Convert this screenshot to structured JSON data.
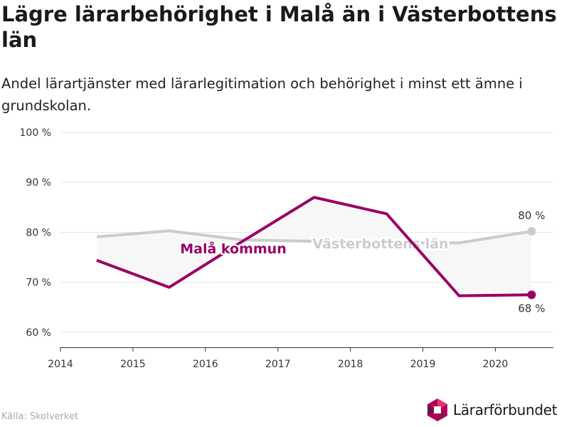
{
  "header": {
    "title": "Lägre lärarbehörighet i Malå än i Västerbottens län",
    "subtitle": "Andel lärartjänster med lärarlegitimation och behörighet i minst ett ämne i grundskolan."
  },
  "footer": {
    "source": "Källa: Skolverket",
    "brand_name": "Lärarförbundet",
    "brand_icon": "lararforbundet-logo-icon"
  },
  "chart_data": {
    "type": "line",
    "title": "Lägre lärarbehörighet i Malå än i Västerbottens län",
    "subtitle": "Andel lärartjänster med lärarlegitimation och behörighet i minst ett ämne i grundskolan.",
    "xlabel": "",
    "ylabel": "",
    "xlim": [
      2014,
      2020.8
    ],
    "ylim": [
      57,
      100
    ],
    "x_ticks": [
      2014,
      2015,
      2016,
      2017,
      2018,
      2019,
      2020
    ],
    "y_ticks": [
      60,
      70,
      80,
      90,
      100
    ],
    "y_tick_labels": [
      "60 %",
      "70 %",
      "80 %",
      "90 %",
      "100 %"
    ],
    "grid": "horizontal",
    "legend": "inline-labels",
    "shaded_gap_between_series": true,
    "x": [
      2014.5,
      2015.5,
      2016.5,
      2017.5,
      2018.5,
      2019.5,
      2020.5
    ],
    "series": [
      {
        "name": "Västerbottens län",
        "color": "#cccccc",
        "values": [
          79.1,
          80.3,
          78.5,
          78.2,
          77.9,
          77.9,
          80.2
        ],
        "end_label": "80 %"
      },
      {
        "name": "Malå kommun",
        "color": "#990066",
        "values": [
          74.4,
          69.0,
          78.1,
          87.0,
          83.7,
          67.3,
          67.5
        ],
        "end_label": "68 %"
      }
    ]
  }
}
